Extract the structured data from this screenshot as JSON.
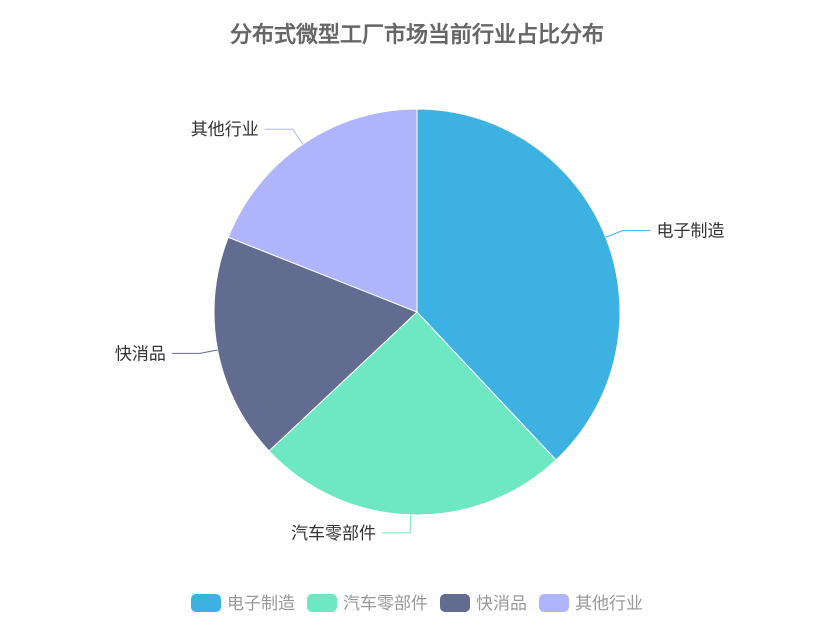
{
  "chart_data": {
    "type": "pie",
    "title": "分布式微型工厂市场当前行业占比分布",
    "slices": [
      {
        "name": "电子制造",
        "value": 38,
        "color": "#3eb1e3"
      },
      {
        "name": "汽车零部件",
        "value": 25,
        "color": "#6de8c2"
      },
      {
        "name": "快消品",
        "value": 18,
        "color": "#626c91"
      },
      {
        "name": "其他行业",
        "value": 19,
        "color": "#b0b5fb"
      }
    ],
    "legend": {
      "position": "bottom"
    }
  }
}
